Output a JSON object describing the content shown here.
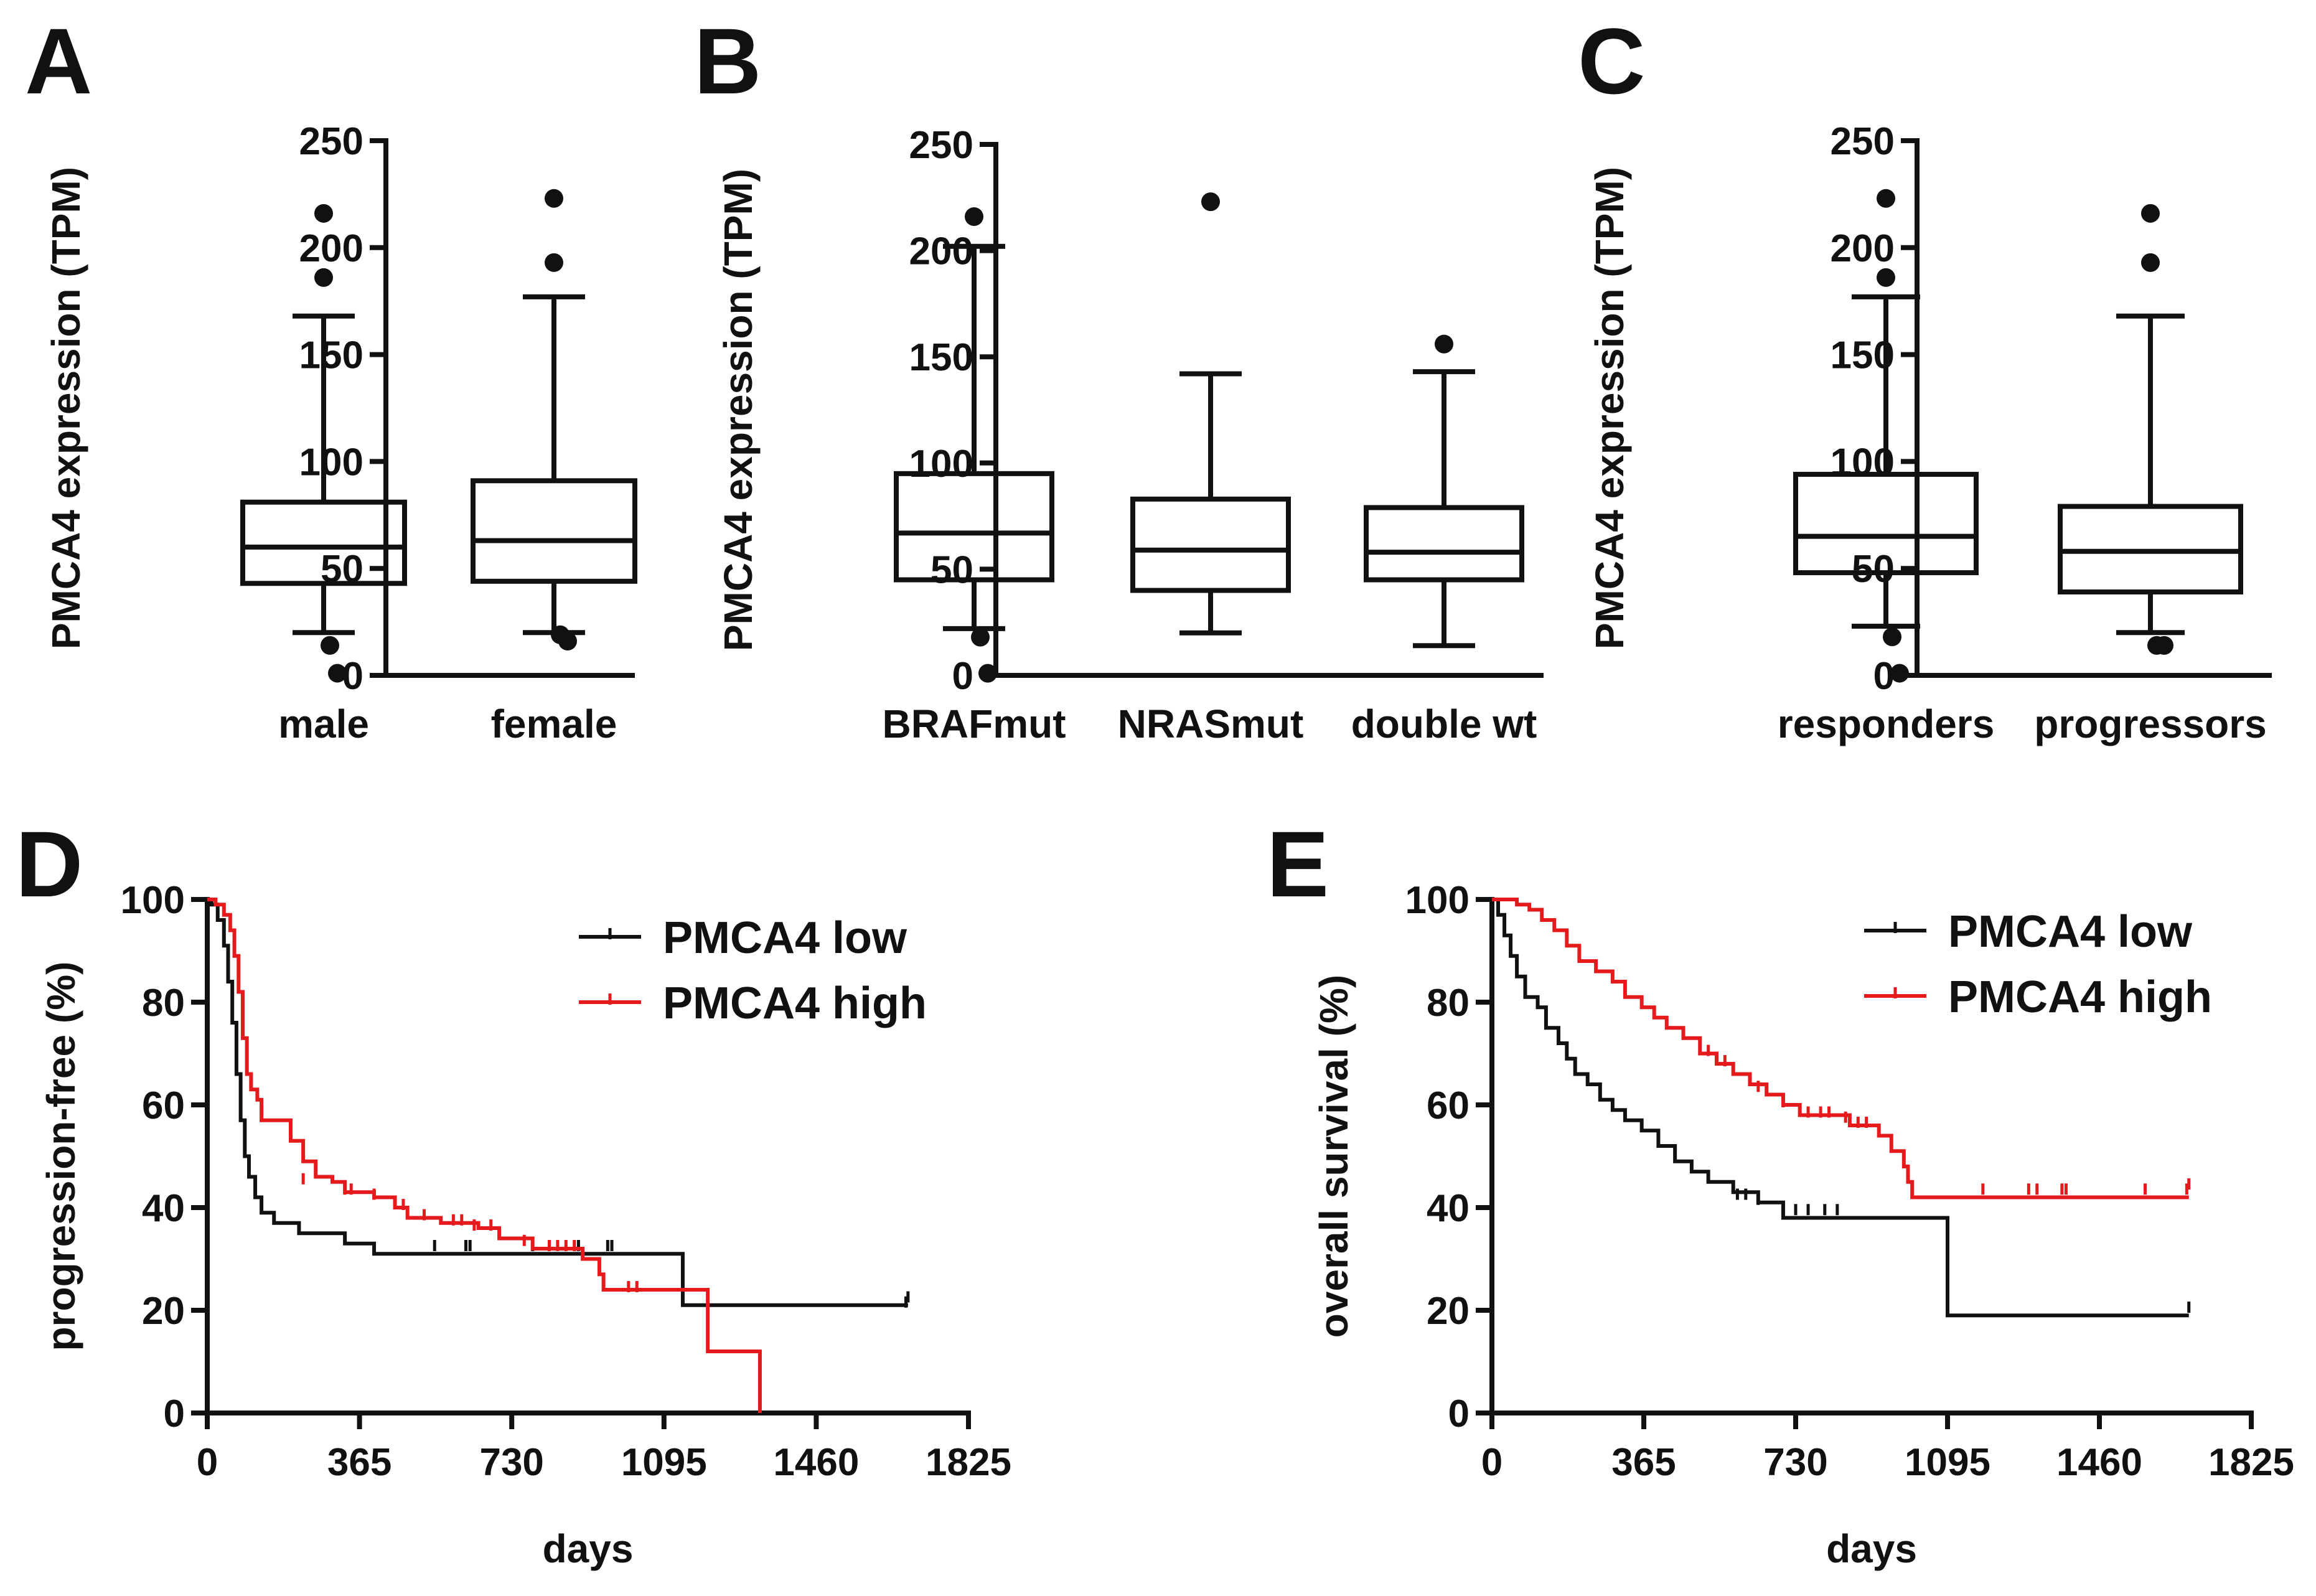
{
  "colors": {
    "ink": "#111111",
    "low": "#111111",
    "high": "#e41a1c"
  },
  "chart_data": [
    {
      "panel": "A",
      "type": "box",
      "ylabel": "PMCA4 expression (TPM)",
      "xlabel": "",
      "ylim": [
        0,
        250
      ],
      "yticks": [
        0,
        50,
        100,
        150,
        200,
        250
      ],
      "categories": [
        "male",
        "female"
      ],
      "boxes": [
        {
          "label": "male",
          "whisker_low": 20,
          "q1": 43,
          "median": 60,
          "q3": 81,
          "whisker_high": 168,
          "outliers": [
            216,
            186,
            14,
            1
          ]
        },
        {
          "label": "female",
          "whisker_low": 20,
          "q1": 44,
          "median": 63,
          "q3": 91,
          "whisker_high": 177,
          "outliers": [
            223,
            193,
            19,
            16
          ]
        }
      ]
    },
    {
      "panel": "B",
      "type": "box",
      "ylabel": "PMCA4 expression (TPM)",
      "xlabel": "",
      "ylim": [
        0,
        250
      ],
      "yticks": [
        0,
        50,
        100,
        150,
        200,
        250
      ],
      "categories": [
        "BRAFmut",
        "NRASmut",
        "double wt"
      ],
      "boxes": [
        {
          "label": "BRAFmut",
          "whisker_low": 22,
          "q1": 45,
          "median": 67,
          "q3": 95,
          "whisker_high": 202,
          "outliers": [
            216,
            18,
            1
          ]
        },
        {
          "label": "NRASmut",
          "whisker_low": 20,
          "q1": 40,
          "median": 59,
          "q3": 83,
          "whisker_high": 142,
          "outliers": [
            223
          ]
        },
        {
          "label": "double wt",
          "whisker_low": 14,
          "q1": 45,
          "median": 58,
          "q3": 79,
          "whisker_high": 143,
          "outliers": [
            156
          ]
        }
      ]
    },
    {
      "panel": "C",
      "type": "box",
      "ylabel": "PMCA4 expression (TPM)",
      "xlabel": "",
      "ylim": [
        0,
        250
      ],
      "yticks": [
        0,
        50,
        100,
        150,
        200,
        250
      ],
      "categories": [
        "responders",
        "progressors"
      ],
      "boxes": [
        {
          "label": "responders",
          "whisker_low": 23,
          "q1": 48,
          "median": 65,
          "q3": 94,
          "whisker_high": 177,
          "outliers": [
            223,
            186,
            18,
            1
          ]
        },
        {
          "label": "progressors",
          "whisker_low": 20,
          "q1": 39,
          "median": 58,
          "q3": 79,
          "whisker_high": 168,
          "outliers": [
            216,
            193,
            14,
            14
          ]
        }
      ]
    },
    {
      "panel": "D",
      "type": "line",
      "xlabel": "days",
      "ylabel": "progression-free (%)",
      "xlim": [
        0,
        1825
      ],
      "ylim": [
        0,
        100
      ],
      "xticks": [
        0,
        365,
        730,
        1095,
        1460,
        1825
      ],
      "yticks": [
        0,
        20,
        40,
        60,
        80,
        100
      ],
      "legend": [
        "PMCA4 low",
        "PMCA4 high"
      ],
      "series": [
        {
          "name": "PMCA4 low",
          "color": "#111111",
          "steps": [
            [
              0,
              100
            ],
            [
              10,
              99
            ],
            [
              25,
              96
            ],
            [
              40,
              91
            ],
            [
              50,
              84
            ],
            [
              60,
              76
            ],
            [
              70,
              66
            ],
            [
              80,
              57
            ],
            [
              90,
              50
            ],
            [
              100,
              46
            ],
            [
              115,
              42
            ],
            [
              130,
              39
            ],
            [
              160,
              37
            ],
            [
              220,
              35
            ],
            [
              330,
              33
            ],
            [
              400,
              31
            ],
            [
              1140,
              31
            ],
            [
              1140,
              21
            ],
            [
              1680,
              21
            ]
          ],
          "censor": [
            [
              545,
              32
            ],
            [
              620,
              32
            ],
            [
              630,
              32
            ],
            [
              780,
              32
            ],
            [
              890,
              32
            ],
            [
              960,
              32
            ],
            [
              970,
              32
            ],
            [
              1675,
              21
            ],
            [
              1680,
              22
            ]
          ]
        },
        {
          "name": "PMCA4 high",
          "color": "#e41a1c",
          "steps": [
            [
              0,
              100
            ],
            [
              20,
              99
            ],
            [
              40,
              97
            ],
            [
              55,
              94
            ],
            [
              65,
              89
            ],
            [
              75,
              82
            ],
            [
              85,
              73
            ],
            [
              95,
              66
            ],
            [
              105,
              63
            ],
            [
              120,
              61
            ],
            [
              130,
              57
            ],
            [
              180,
              57
            ],
            [
              200,
              53
            ],
            [
              230,
              49
            ],
            [
              260,
              46
            ],
            [
              300,
              45
            ],
            [
              330,
              43
            ],
            [
              400,
              42
            ],
            [
              450,
              40
            ],
            [
              480,
              38
            ],
            [
              560,
              37
            ],
            [
              650,
              36
            ],
            [
              700,
              34
            ],
            [
              780,
              32
            ],
            [
              900,
              30
            ],
            [
              940,
              27
            ],
            [
              950,
              24
            ],
            [
              1200,
              24
            ],
            [
              1200,
              12
            ],
            [
              1325,
              12
            ],
            [
              1325,
              0
            ]
          ],
          "censor": [
            [
              230,
              45
            ],
            [
              330,
              43
            ],
            [
              345,
              43
            ],
            [
              400,
              42
            ],
            [
              470,
              40
            ],
            [
              520,
              38
            ],
            [
              590,
              37
            ],
            [
              610,
              37
            ],
            [
              640,
              36
            ],
            [
              680,
              36
            ],
            [
              760,
              33
            ],
            [
              820,
              32
            ],
            [
              840,
              32
            ],
            [
              860,
              32
            ],
            [
              880,
              32
            ],
            [
              1010,
              24
            ],
            [
              1030,
              24
            ]
          ]
        }
      ]
    },
    {
      "panel": "E",
      "type": "line",
      "xlabel": "days",
      "ylabel": "overall survival (%)",
      "xlim": [
        0,
        1825
      ],
      "ylim": [
        0,
        100
      ],
      "xticks": [
        0,
        365,
        730,
        1095,
        1460,
        1825
      ],
      "yticks": [
        0,
        20,
        40,
        60,
        80,
        100
      ],
      "legend": [
        "PMCA4 low",
        "PMCA4 high"
      ],
      "series": [
        {
          "name": "PMCA4 low",
          "color": "#111111",
          "steps": [
            [
              0,
              100
            ],
            [
              15,
              97
            ],
            [
              30,
              93
            ],
            [
              45,
              89
            ],
            [
              60,
              85
            ],
            [
              80,
              81
            ],
            [
              110,
              79
            ],
            [
              130,
              75
            ],
            [
              160,
              72
            ],
            [
              180,
              69
            ],
            [
              200,
              66
            ],
            [
              230,
              64
            ],
            [
              260,
              61
            ],
            [
              290,
              59
            ],
            [
              320,
              57
            ],
            [
              360,
              55
            ],
            [
              400,
              52
            ],
            [
              440,
              49
            ],
            [
              480,
              47
            ],
            [
              520,
              45
            ],
            [
              580,
              43
            ],
            [
              640,
              41
            ],
            [
              700,
              38
            ],
            [
              1095,
              38
            ],
            [
              1095,
              19
            ],
            [
              1675,
              19
            ]
          ],
          "censor": [
            [
              590,
              42
            ],
            [
              610,
              42
            ],
            [
              640,
              41
            ],
            [
              700,
              39
            ],
            [
              730,
              39
            ],
            [
              760,
              39
            ],
            [
              800,
              39
            ],
            [
              830,
              39
            ],
            [
              1675,
              20
            ]
          ]
        },
        {
          "name": "PMCA4 high",
          "color": "#e41a1c",
          "steps": [
            [
              0,
              100
            ],
            [
              40,
              100
            ],
            [
              60,
              99
            ],
            [
              90,
              98
            ],
            [
              120,
              96
            ],
            [
              150,
              94
            ],
            [
              180,
              91
            ],
            [
              210,
              88
            ],
            [
              250,
              86
            ],
            [
              290,
              84
            ],
            [
              320,
              81
            ],
            [
              360,
              79
            ],
            [
              390,
              77
            ],
            [
              420,
              75
            ],
            [
              460,
              73
            ],
            [
              500,
              70
            ],
            [
              540,
              68
            ],
            [
              580,
              66
            ],
            [
              620,
              64
            ],
            [
              660,
              62
            ],
            [
              700,
              60
            ],
            [
              740,
              58
            ],
            [
              820,
              58
            ],
            [
              860,
              56
            ],
            [
              930,
              54
            ],
            [
              960,
              51
            ],
            [
              990,
              48
            ],
            [
              1000,
              45
            ],
            [
              1010,
              42
            ],
            [
              1675,
              42
            ]
          ],
          "censor": [
            [
              520,
              70
            ],
            [
              560,
              68
            ],
            [
              640,
              63
            ],
            [
              700,
              60
            ],
            [
              760,
              58
            ],
            [
              790,
              58
            ],
            [
              810,
              58
            ],
            [
              850,
              57
            ],
            [
              880,
              56
            ],
            [
              900,
              56
            ],
            [
              1010,
              43
            ],
            [
              1180,
              43
            ],
            [
              1290,
              43
            ],
            [
              1310,
              43
            ],
            [
              1370,
              43
            ],
            [
              1380,
              43
            ],
            [
              1570,
              43
            ],
            [
              1670,
              43
            ],
            [
              1675,
              44
            ]
          ]
        }
      ]
    }
  ]
}
